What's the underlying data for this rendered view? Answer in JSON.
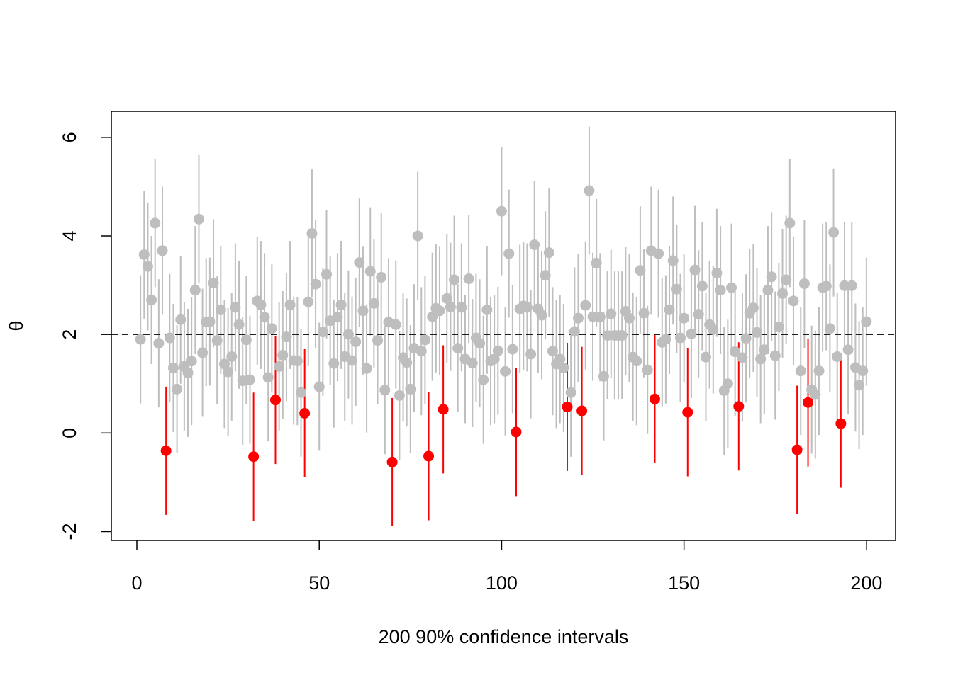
{
  "chart_data": {
    "type": "scatter",
    "xlabel": "200 90% confidence intervals",
    "ylabel": "θ",
    "xlim": [
      -7,
      208
    ],
    "ylim": [
      -2.18,
      6.53
    ],
    "xticks": [
      0,
      50,
      100,
      150,
      200
    ],
    "yticks": [
      -2,
      0,
      2,
      4,
      6
    ],
    "reference_line": 2,
    "series": [
      {
        "color": "#bebebe",
        "error": 1.3,
        "x": [
          1,
          2,
          3,
          4,
          5,
          6,
          7,
          9,
          10,
          11,
          12,
          13,
          14,
          15,
          16,
          17,
          18,
          19,
          20,
          21,
          22,
          23,
          24,
          25,
          26,
          27,
          28,
          29,
          30,
          31,
          33,
          34,
          35,
          36,
          37,
          39,
          40,
          41,
          42,
          43,
          44,
          45,
          47,
          48,
          49,
          50,
          51,
          52,
          53,
          54,
          55,
          56,
          57,
          58,
          59,
          60,
          61,
          62,
          63,
          64,
          65,
          66,
          67,
          68,
          69,
          71,
          72,
          73,
          74,
          75,
          76,
          77,
          78,
          79,
          81,
          82,
          83,
          85,
          86,
          87,
          88,
          89,
          90,
          91,
          92,
          93,
          94,
          95,
          96,
          97,
          98,
          99,
          100,
          101,
          102,
          103,
          105,
          106,
          107,
          108,
          109,
          110,
          111,
          112,
          113,
          114,
          115,
          116,
          117,
          119,
          120,
          121,
          123,
          124,
          125,
          126,
          127,
          128,
          129,
          130,
          131,
          132,
          133,
          134,
          135,
          136,
          137,
          138,
          139,
          140,
          141,
          143,
          144,
          145,
          146,
          147,
          148,
          149,
          150,
          152,
          153,
          154,
          155,
          156,
          157,
          158,
          159,
          160,
          161,
          162,
          163,
          164,
          166,
          167,
          168,
          169,
          170,
          171,
          172,
          173,
          174,
          175,
          176,
          177,
          178,
          179,
          180,
          182,
          183,
          185,
          186,
          187,
          188,
          189,
          190,
          191,
          192,
          194,
          195,
          196,
          197,
          198,
          199,
          200
        ],
        "values": [
          1.9,
          3.62,
          3.38,
          2.7,
          4.26,
          1.82,
          3.7,
          1.93,
          1.32,
          0.89,
          2.3,
          1.35,
          1.22,
          1.46,
          2.9,
          4.34,
          1.63,
          2.25,
          2.26,
          3.04,
          1.88,
          2.5,
          1.4,
          1.24,
          1.55,
          2.55,
          2.2,
          1.06,
          1.89,
          1.08,
          2.68,
          2.6,
          2.35,
          1.13,
          2.12,
          1.35,
          1.58,
          1.95,
          2.6,
          1.47,
          1.46,
          0.82,
          2.66,
          4.05,
          3.02,
          0.94,
          2.05,
          3.22,
          2.28,
          1.41,
          2.35,
          2.6,
          1.55,
          2.0,
          1.47,
          1.85,
          3.46,
          2.48,
          1.31,
          3.28,
          2.63,
          1.88,
          3.16,
          0.87,
          2.25,
          2.2,
          0.76,
          1.53,
          1.43,
          0.89,
          1.72,
          4.0,
          1.66,
          1.89,
          2.36,
          2.53,
          2.48,
          2.73,
          2.56,
          3.11,
          1.72,
          2.55,
          1.5,
          3.13,
          1.42,
          1.93,
          1.82,
          1.08,
          2.5,
          1.46,
          1.5,
          1.67,
          4.5,
          1.25,
          3.64,
          1.7,
          2.52,
          2.58,
          2.55,
          1.6,
          3.82,
          2.52,
          2.39,
          3.2,
          3.66,
          1.66,
          1.4,
          1.5,
          1.32,
          0.82,
          2.06,
          2.33,
          2.59,
          4.92,
          2.36,
          3.45,
          2.35,
          1.15,
          1.98,
          2.42,
          1.98,
          1.98,
          1.98,
          2.47,
          2.33,
          1.54,
          1.46,
          3.3,
          2.43,
          1.28,
          3.7,
          3.64,
          1.84,
          1.9,
          2.5,
          3.5,
          2.92,
          1.93,
          2.33,
          2.01,
          3.31,
          2.41,
          2.98,
          1.54,
          2.2,
          2.1,
          3.25,
          2.9,
          0.86,
          1.0,
          2.95,
          1.65,
          1.53,
          1.92,
          2.43,
          2.54,
          2.04,
          1.5,
          1.69,
          2.9,
          3.17,
          1.57,
          2.15,
          2.83,
          3.11,
          4.26,
          2.68,
          1.26,
          3.03,
          0.88,
          0.78,
          1.26,
          2.95,
          2.98,
          2.12,
          4.07,
          1.55,
          2.99,
          1.69,
          2.99,
          1.33,
          0.97,
          1.26,
          2.26
        ]
      },
      {
        "color": "#ff0000",
        "error": 1.3,
        "x": [
          8,
          32,
          38,
          46,
          70,
          80,
          84,
          104,
          118,
          122,
          142,
          151,
          165,
          181,
          184,
          193
        ],
        "values": [
          -0.36,
          -0.48,
          0.67,
          0.4,
          -0.59,
          -0.47,
          0.48,
          0.02,
          0.53,
          0.45,
          0.69,
          0.42,
          0.54,
          -0.34,
          0.62,
          0.19
        ]
      }
    ]
  }
}
